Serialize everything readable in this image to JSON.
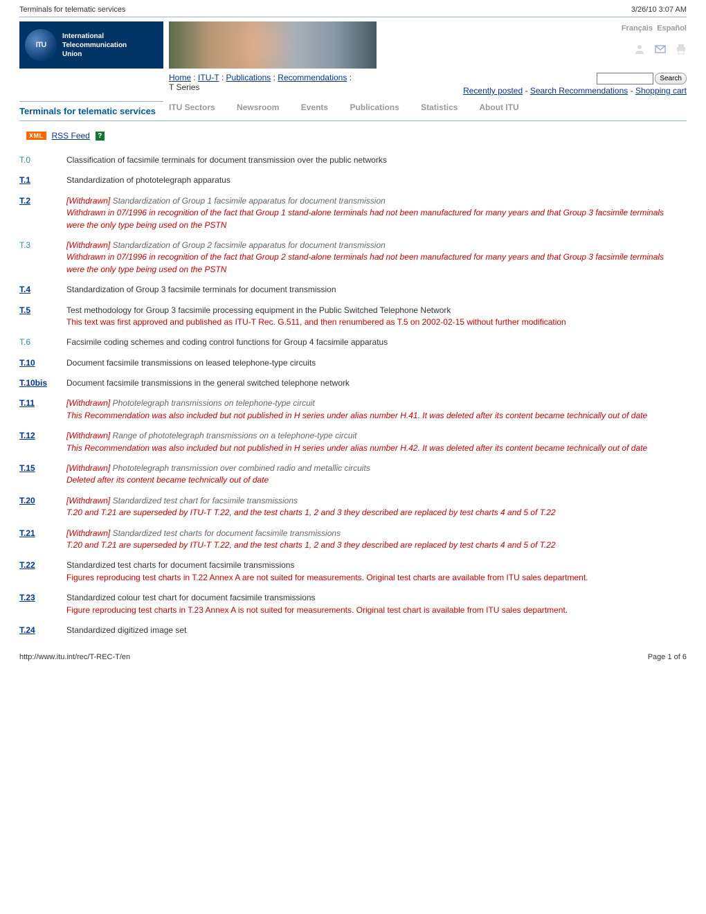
{
  "page": {
    "doc_title": "Terminals for telematic services",
    "timestamp": "3/26/10 3:07 AM",
    "footer_url": "http://www.itu.int/rec/T-REC-T/en",
    "footer_page": "Page 1 of 6"
  },
  "logo": {
    "line1": "International",
    "line2": "Telecommunication",
    "line3": "Union"
  },
  "lang": {
    "fr": "Français",
    "es": "Español"
  },
  "breadcrumb": {
    "home": "Home",
    "sep": ":",
    "itu_t": "ITU-T",
    "pubs": "Publications",
    "recs": "Recommendations",
    "tail": "T Series"
  },
  "quicklinks": {
    "recent": "Recently posted",
    "search_recs": "Search Recommendations",
    "cart": "Shopping cart",
    "dash": "-"
  },
  "search": {
    "button": "Search"
  },
  "nav": {
    "sectors": "ITU Sectors",
    "newsroom": "Newsroom",
    "events": "Events",
    "publications": "Publications",
    "statistics": "Statistics",
    "about": "About ITU"
  },
  "section": {
    "title": "Terminals for telematic services"
  },
  "rss": {
    "xml": "XML",
    "label": "RSS Feed",
    "help": "?"
  },
  "withdrawn_label": "[Withdrawn]",
  "recs": [
    {
      "code": "T.0",
      "link": false,
      "title": "Classification of facsimile terminals for document transmission over the public networks"
    },
    {
      "code": "T.1",
      "link": true,
      "title": "Standardization of phototelegraph apparatus"
    },
    {
      "code": "T.2",
      "link": true,
      "withdrawn": true,
      "title": "Standardization of Group 1 facsimile apparatus for document transmission",
      "note_italic": "Withdrawn in 07/1996 in recognition of the fact that Group 1 stand-alone terminals had not been manufactured for many years and that Group 3 facsimile terminals were the only type being used on the PSTN"
    },
    {
      "code": "T.3",
      "link": false,
      "withdrawn": true,
      "title": "Standardization of Group 2 facsimile apparatus for document transmission",
      "note_italic": "Withdrawn in 07/1996 in recognition of the fact that Group 2 stand-alone terminals had not been manufactured for many years and that Group 3 facsimile terminals were the only type being used on the PSTN"
    },
    {
      "code": "T.4",
      "link": true,
      "title": "Standardization of Group 3 facsimile terminals for document transmission"
    },
    {
      "code": "T.5",
      "link": true,
      "title": "Test methodology for Group 3 facsimile processing equipment in the Public Switched Telephone Network",
      "note": "This text was first approved and published as ITU-T Rec. G.511, and then renumbered as T.5 on 2002-02-15 without further modification"
    },
    {
      "code": "T.6",
      "link": false,
      "title": "Facsimile coding schemes and coding control functions for Group 4 facsimile apparatus"
    },
    {
      "code": "T.10",
      "link": true,
      "title": "Document facsimile transmissions on leased telephone-type circuits"
    },
    {
      "code": "T.10bis",
      "link": true,
      "title": "Document facsimile transmissions in the general switched telephone network"
    },
    {
      "code": "T.11",
      "link": true,
      "withdrawn": true,
      "title": "Phototelegraph transmissions on telephone-type circuit",
      "note_italic": "This Recommendation was also included but not published in H series under alias number H.41. It was deleted after its content became technically out of date"
    },
    {
      "code": "T.12",
      "link": true,
      "withdrawn": true,
      "title": "Range of phototelegraph transmissions on a telephone-type circuit",
      "note_italic": "This Recommendation was also included but not published in H series under alias number H.42. It was deleted after its content became technically out of date"
    },
    {
      "code": "T.15",
      "link": true,
      "withdrawn": true,
      "title": "Phototelegraph transmission over combined radio and metallic circuits",
      "note_italic": "Deleted after its content became technically out of date"
    },
    {
      "code": "T.20",
      "link": true,
      "withdrawn": true,
      "title": "Standardized test chart for facsimile transmissions",
      "note_italic": "T.20 and T.21 are superseded by ITU-T T.22, and the test charts 1, 2 and 3 they described are replaced by test charts 4 and 5 of T.22"
    },
    {
      "code": "T.21",
      "link": true,
      "withdrawn": true,
      "title": "Standardized test charts for document facsimile transmissions",
      "note_italic": "T.20 and T.21 are superseded by ITU-T T.22, and the test charts 1, 2 and 3 they described are replaced by test charts 4 and 5 of T.22"
    },
    {
      "code": "T.22",
      "link": true,
      "title": "Standardized test charts for document facsimile transmissions",
      "note": "Figures reproducing test charts in T.22 Annex A are not suited for measurements. Original test charts are available from ITU sales department."
    },
    {
      "code": "T.23",
      "link": true,
      "title": "Standardized colour test chart for document facsimile transmissions",
      "note": "Figure reproducing test charts in T.23 Annex A is not suited for measurements. Original test chart is available from ITU sales department."
    },
    {
      "code": "T.24",
      "link": true,
      "title": "Standardized digitized image set"
    }
  ]
}
